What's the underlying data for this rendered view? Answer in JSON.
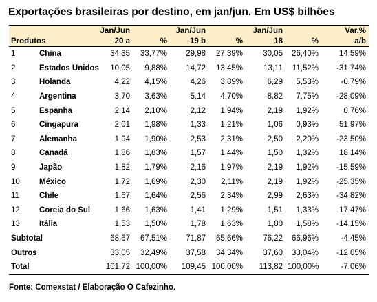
{
  "title": "Exportações brasileiras por destino, em jan/jun. Em US$ bilhões",
  "source": "Fonte: Comexstat / Elaboração O Cafezinho.",
  "chart_data": {
    "type": "table",
    "header": {
      "produtos": "Produtos",
      "col_2020": [
        "Jan/Jun",
        "20 a"
      ],
      "col_2019": [
        "Jan/Jun",
        "19 b"
      ],
      "col_2018": [
        "Jan/Jun",
        "18"
      ],
      "pct": "%",
      "var": [
        "Var.%",
        "a/b"
      ]
    },
    "rows": [
      {
        "rank": "1",
        "name": "China",
        "v20": "34,35",
        "p20": "33,77%",
        "v19": "29,98",
        "p19": "27,39%",
        "v18": "30,05",
        "p18": "26,40%",
        "var": "14,59%"
      },
      {
        "rank": "2",
        "name": "Estados Unidos",
        "v20": "10,05",
        "p20": "9,88%",
        "v19": "14,72",
        "p19": "13,45%",
        "v18": "13,11",
        "p18": "11,52%",
        "var": "-31,74%"
      },
      {
        "rank": "3",
        "name": "Holanda",
        "v20": "4,22",
        "p20": "4,15%",
        "v19": "4,26",
        "p19": "3,89%",
        "v18": "6,29",
        "p18": "5,53%",
        "var": "-0,79%"
      },
      {
        "rank": "4",
        "name": "Argentina",
        "v20": "3,70",
        "p20": "3,63%",
        "v19": "5,14",
        "p19": "4,70%",
        "v18": "8,82",
        "p18": "7,75%",
        "var": "-28,09%"
      },
      {
        "rank": "5",
        "name": "Espanha",
        "v20": "2,14",
        "p20": "2,10%",
        "v19": "2,12",
        "p19": "1,94%",
        "v18": "2,19",
        "p18": "1,92%",
        "var": "0,76%"
      },
      {
        "rank": "6",
        "name": "Cingapura",
        "v20": "2,01",
        "p20": "1,98%",
        "v19": "1,33",
        "p19": "1,21%",
        "v18": "1,06",
        "p18": "0,93%",
        "var": "51,97%"
      },
      {
        "rank": "7",
        "name": "Alemanha",
        "v20": "1,94",
        "p20": "1,90%",
        "v19": "2,53",
        "p19": "2,31%",
        "v18": "2,50",
        "p18": "2,20%",
        "var": "-23,50%"
      },
      {
        "rank": "8",
        "name": "Canadá",
        "v20": "1,86",
        "p20": "1,83%",
        "v19": "1,57",
        "p19": "1,44%",
        "v18": "1,50",
        "p18": "1,32%",
        "var": "18,14%"
      },
      {
        "rank": "9",
        "name": "Japão",
        "v20": "1,82",
        "p20": "1,79%",
        "v19": "2,16",
        "p19": "1,97%",
        "v18": "2,19",
        "p18": "1,92%",
        "var": "-15,59%"
      },
      {
        "rank": "10",
        "name": "México",
        "v20": "1,72",
        "p20": "1,69%",
        "v19": "2,30",
        "p19": "2,11%",
        "v18": "2,19",
        "p18": "1,92%",
        "var": "-25,35%"
      },
      {
        "rank": "11",
        "name": "Chile",
        "v20": "1,67",
        "p20": "1,64%",
        "v19": "2,56",
        "p19": "2,34%",
        "v18": "2,99",
        "p18": "2,63%",
        "var": "-34,82%"
      },
      {
        "rank": "12",
        "name": "Coreia do Sul",
        "v20": "1,66",
        "p20": "1,63%",
        "v19": "1,41",
        "p19": "1,29%",
        "v18": "1,51",
        "p18": "1,33%",
        "var": "17,47%"
      },
      {
        "rank": "13",
        "name": "Itália",
        "v20": "1,53",
        "p20": "1,50%",
        "v19": "1,78",
        "p19": "1,63%",
        "v18": "1,80",
        "p18": "1,58%",
        "var": "-14,15%"
      }
    ],
    "summary": [
      {
        "label": "Subtotal",
        "v20": "68,67",
        "p20": "67,51%",
        "v19": "71,87",
        "p19": "65,66%",
        "v18": "76,22",
        "p18": "66,96%",
        "var": "-4,45%"
      },
      {
        "label": "Outros",
        "v20": "33,05",
        "p20": "32,49%",
        "v19": "37,58",
        "p19": "34,34%",
        "v18": "37,60",
        "p18": "33,04%",
        "var": "-12,05%"
      },
      {
        "label": "Total",
        "v20": "101,72",
        "p20": "100,00%",
        "v19": "109,45",
        "p19": "100,00%",
        "v18": "113,82",
        "p18": "100,00%",
        "var": "-7,06%"
      }
    ]
  }
}
